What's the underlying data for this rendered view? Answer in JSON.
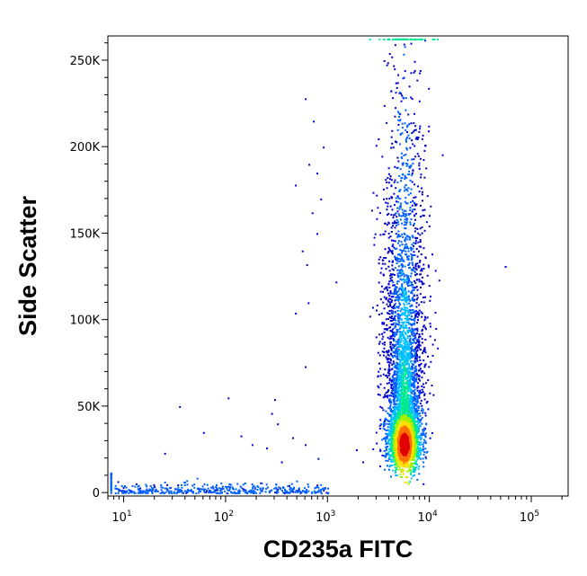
{
  "chart_data": {
    "type": "scatter",
    "title": "",
    "xlabel": "CD235a FITC",
    "ylabel": "Side Scatter",
    "x_scale": "log",
    "xlim": [
      7,
      230000
    ],
    "ylim": [
      -2000,
      264000
    ],
    "x_ticks": [
      {
        "value": 10,
        "base": "10",
        "exp": "1"
      },
      {
        "value": 100,
        "base": "10",
        "exp": "2"
      },
      {
        "value": 1000,
        "base": "10",
        "exp": "3"
      },
      {
        "value": 10000,
        "base": "10",
        "exp": "4"
      },
      {
        "value": 100000,
        "base": "10",
        "exp": "5"
      }
    ],
    "y_ticks": [
      {
        "value": 0,
        "label": "0"
      },
      {
        "value": 50000,
        "label": "50K"
      },
      {
        "value": 100000,
        "label": "100K"
      },
      {
        "value": 150000,
        "label": "150K"
      },
      {
        "value": 200000,
        "label": "200K"
      },
      {
        "value": 250000,
        "label": "250K"
      }
    ],
    "grid": false,
    "legend": "none",
    "density_colormap": [
      "#0000cc",
      "#0060ff",
      "#00c0ff",
      "#00e890",
      "#a0f000",
      "#ffe000",
      "#ff7000",
      "#e00000"
    ],
    "populations": [
      {
        "name": "main",
        "x_center": 5600,
        "y_peak": 28000,
        "y_range": [
          5000,
          262000
        ]
      },
      {
        "name": "low-events",
        "x_range": [
          8,
          1000
        ],
        "y_range": [
          0,
          8000
        ]
      }
    ],
    "outliers": [
      {
        "x": 600,
        "y": 228000
      },
      {
        "x": 720,
        "y": 215000
      },
      {
        "x": 900,
        "y": 200000
      },
      {
        "x": 650,
        "y": 190000
      },
      {
        "x": 780,
        "y": 185000
      },
      {
        "x": 480,
        "y": 178000
      },
      {
        "x": 850,
        "y": 170000
      },
      {
        "x": 700,
        "y": 162000
      },
      {
        "x": 780,
        "y": 150000
      },
      {
        "x": 560,
        "y": 140000
      },
      {
        "x": 620,
        "y": 132000
      },
      {
        "x": 1200,
        "y": 122000
      },
      {
        "x": 640,
        "y": 110000
      },
      {
        "x": 480,
        "y": 104000
      },
      {
        "x": 600,
        "y": 73000
      },
      {
        "x": 55000,
        "y": 131000
      },
      {
        "x": 35,
        "y": 50000
      },
      {
        "x": 105,
        "y": 55000
      },
      {
        "x": 300,
        "y": 54000
      },
      {
        "x": 280,
        "y": 46000
      },
      {
        "x": 320,
        "y": 40000
      },
      {
        "x": 450,
        "y": 32000
      },
      {
        "x": 600,
        "y": 28000
      },
      {
        "x": 250,
        "y": 26000
      },
      {
        "x": 140,
        "y": 33000
      },
      {
        "x": 180,
        "y": 28000
      },
      {
        "x": 60,
        "y": 35000
      },
      {
        "x": 25,
        "y": 23000
      },
      {
        "x": 350,
        "y": 18000
      },
      {
        "x": 800,
        "y": 20000
      },
      {
        "x": 1900,
        "y": 25000
      },
      {
        "x": 2200,
        "y": 18000
      }
    ]
  }
}
